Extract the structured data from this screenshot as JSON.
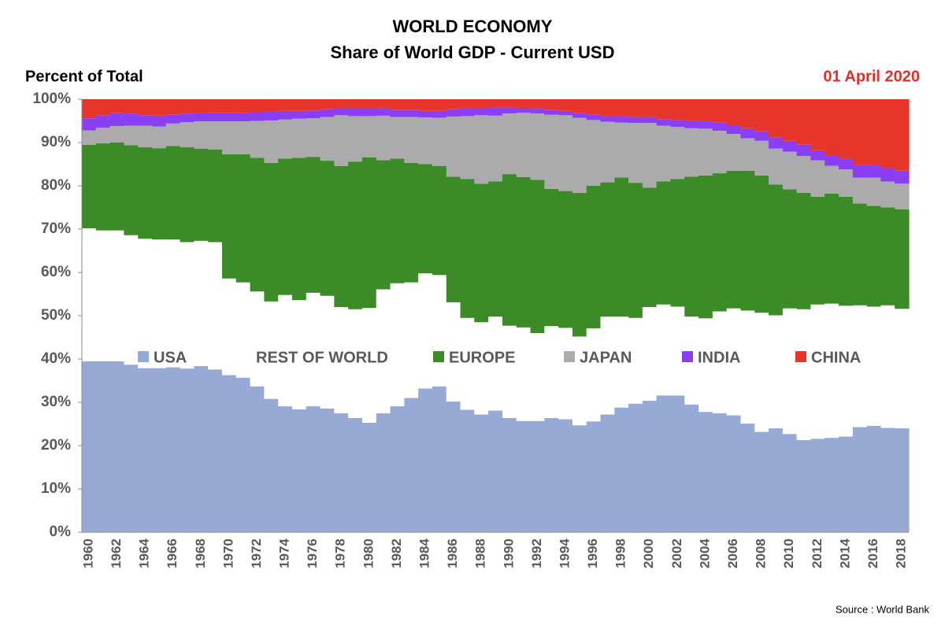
{
  "chart_data": {
    "type": "bar",
    "stacked": true,
    "title": "WORLD ECONOMY",
    "subtitle": "Share of World GDP - Current USD",
    "y_label": "Percent of Total",
    "date": "01 April 2020",
    "source": "Source : World Bank",
    "categories": [
      "1960",
      null,
      "1962",
      null,
      "1964",
      null,
      "1966",
      null,
      "1968",
      null,
      "1970",
      null,
      "1972",
      null,
      "1974",
      null,
      "1976",
      null,
      "1978",
      null,
      "1980",
      null,
      "1982",
      null,
      "1984",
      null,
      "1986",
      null,
      "1988",
      null,
      "1990",
      null,
      "1992",
      null,
      "1994",
      null,
      "1996",
      null,
      "1998",
      null,
      "2000",
      null,
      "2002",
      null,
      "2004",
      null,
      "2006",
      null,
      "2008",
      null,
      "2010",
      null,
      "2012",
      null,
      "2014",
      null,
      "2016",
      null,
      "2018"
    ],
    "series": [
      {
        "name": "USA",
        "color": "#97aad6",
        "values": [
          39.5,
          39.5,
          39.5,
          38.7,
          37.9,
          37.9,
          38.1,
          37.8,
          38.4,
          37.6,
          36.3,
          35.7,
          33.7,
          30.8,
          29.1,
          28.4,
          29.1,
          28.6,
          27.5,
          26.4,
          25.3,
          27.5,
          29.1,
          31.0,
          33.2,
          33.7,
          30.2,
          28.3,
          27.2,
          28.1,
          26.4,
          25.7,
          25.7,
          26.4,
          26.1,
          24.7,
          25.6,
          27.2,
          28.8,
          29.7,
          30.4,
          31.6,
          31.6,
          29.5,
          27.8,
          27.5,
          27.0,
          25.1,
          23.2,
          24.0,
          22.7,
          21.3,
          21.6,
          21.8,
          22.1,
          24.3,
          24.6,
          24.1,
          24.0
        ]
      },
      {
        "name": "REST OF WORLD",
        "color": "#ffffff",
        "values": [
          30.7,
          30.2,
          30.2,
          29.9,
          29.9,
          29.7,
          29.5,
          29.2,
          28.9,
          29.4,
          22.3,
          22.0,
          21.9,
          22.5,
          25.7,
          25.2,
          26.2,
          26.0,
          24.5,
          25.1,
          26.5,
          28.6,
          28.4,
          26.7,
          26.6,
          25.7,
          22.9,
          21.2,
          21.3,
          21.7,
          21.3,
          21.6,
          20.3,
          21.2,
          21.1,
          20.5,
          21.5,
          22.6,
          21.0,
          19.8,
          21.6,
          21.0,
          20.5,
          20.3,
          21.6,
          23.5,
          24.7,
          26.1,
          27.5,
          26.1,
          29.0,
          30.2,
          31.0,
          31.0,
          30.2,
          28.1,
          27.5,
          28.3,
          27.6
        ]
      },
      {
        "name": "EUROPE",
        "color": "#3b8b26",
        "values": [
          19.3,
          20.1,
          20.3,
          20.8,
          21.1,
          21.1,
          21.6,
          21.9,
          21.3,
          21.4,
          28.7,
          29.6,
          30.9,
          32.0,
          31.5,
          32.9,
          31.4,
          31.2,
          32.6,
          34.1,
          34.8,
          29.8,
          28.8,
          27.6,
          25.2,
          25.2,
          29.0,
          32.1,
          32.0,
          31.2,
          35.0,
          34.7,
          35.4,
          31.7,
          31.6,
          33.2,
          32.9,
          31.0,
          32.1,
          31.2,
          27.6,
          28.4,
          29.5,
          32.3,
          33.0,
          31.9,
          31.8,
          32.3,
          31.7,
          30.2,
          27.5,
          26.9,
          24.9,
          25.4,
          25.2,
          23.5,
          23.3,
          22.6,
          23.0
        ]
      },
      {
        "name": "JAPAN",
        "color": "#ababab",
        "values": [
          3.3,
          3.6,
          3.8,
          4.5,
          5.0,
          5.0,
          5.2,
          5.8,
          6.3,
          6.5,
          7.6,
          7.6,
          8.5,
          9.8,
          9.0,
          9.0,
          8.9,
          10.1,
          11.7,
          10.5,
          9.5,
          10.3,
          9.6,
          10.6,
          10.8,
          11.1,
          13.9,
          14.5,
          15.8,
          15.2,
          14.0,
          14.9,
          15.3,
          17.1,
          17.5,
          17.3,
          15.2,
          14.0,
          12.7,
          13.8,
          14.9,
          12.9,
          12.0,
          11.2,
          10.8,
          9.8,
          8.5,
          7.5,
          8.0,
          8.3,
          8.7,
          8.5,
          8.4,
          6.4,
          6.3,
          6.0,
          6.5,
          6.0,
          5.9
        ]
      },
      {
        "name": "INDIA",
        "color": "#8b3ff4",
        "values": [
          2.8,
          2.9,
          3.0,
          2.8,
          2.4,
          2.5,
          2.0,
          2.0,
          2.0,
          1.9,
          1.9,
          1.9,
          2.0,
          2.0,
          2.0,
          1.8,
          1.8,
          1.8,
          1.7,
          1.9,
          1.9,
          1.7,
          1.7,
          1.6,
          1.5,
          1.6,
          1.7,
          1.8,
          1.7,
          1.9,
          1.4,
          1.1,
          1.1,
          1.1,
          1.0,
          1.1,
          1.2,
          1.3,
          1.5,
          1.4,
          1.4,
          1.5,
          1.6,
          1.8,
          1.7,
          1.9,
          2.0,
          2.3,
          2.2,
          2.6,
          2.5,
          2.6,
          2.3,
          2.3,
          2.4,
          2.9,
          3.0,
          3.1,
          3.0
        ]
      },
      {
        "name": "CHINA",
        "color": "#e8352a",
        "values": [
          4.4,
          3.7,
          3.2,
          3.3,
          3.7,
          3.8,
          3.6,
          3.3,
          3.1,
          3.2,
          3.2,
          3.2,
          3.0,
          2.9,
          2.7,
          2.7,
          2.6,
          2.3,
          2.0,
          2.0,
          2.0,
          2.1,
          2.4,
          2.5,
          2.7,
          2.7,
          2.3,
          2.1,
          2.0,
          1.9,
          1.9,
          2.0,
          2.2,
          2.5,
          2.7,
          3.2,
          3.6,
          3.9,
          3.9,
          4.1,
          4.1,
          4.6,
          4.8,
          4.9,
          5.1,
          5.4,
          6.0,
          6.7,
          7.4,
          8.8,
          9.6,
          10.5,
          11.8,
          13.1,
          13.8,
          15.2,
          15.1,
          15.9,
          16.5
        ]
      }
    ],
    "ylim": [
      0,
      100
    ],
    "yticks": [
      {
        "value": 0,
        "label": "0%"
      },
      {
        "value": 10,
        "label": "10%"
      },
      {
        "value": 20,
        "label": "20%"
      },
      {
        "value": 30,
        "label": "30%"
      },
      {
        "value": 40,
        "label": "40%"
      },
      {
        "value": 50,
        "label": "50%"
      },
      {
        "value": 60,
        "label": "60%"
      },
      {
        "value": 70,
        "label": "70%"
      },
      {
        "value": 80,
        "label": "80%"
      },
      {
        "value": 90,
        "label": "90%"
      },
      {
        "value": 100,
        "label": "100%"
      }
    ],
    "grid": false
  }
}
